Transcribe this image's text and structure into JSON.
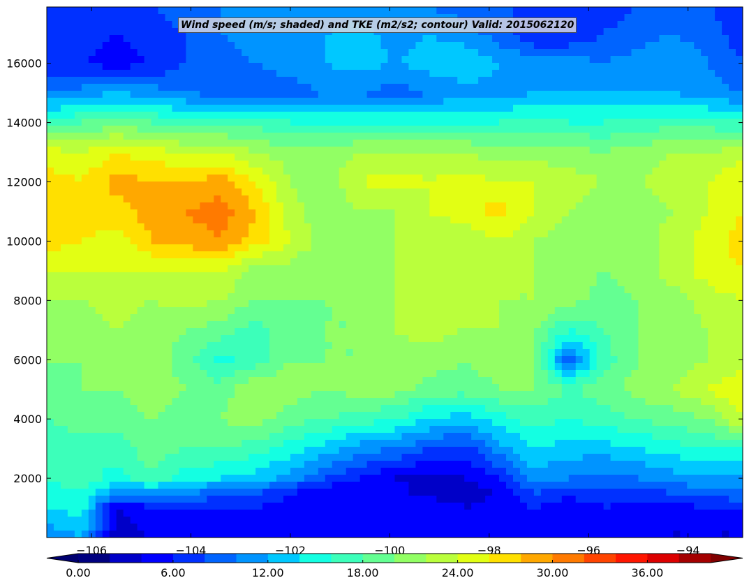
{
  "chart_data": {
    "type": "heatmap",
    "title": "Wind speed (m/s; shaded) and TKE (m2/s2; contour) Valid: 2015062120",
    "xlabel": "",
    "ylabel": "",
    "xlim": [
      -106.9,
      -92.9
    ],
    "ylim": [
      0,
      17900
    ],
    "x_ticks": [
      -106,
      -104,
      -102,
      -100,
      -98,
      -96,
      -94
    ],
    "x_tick_labels": [
      "−106",
      "−104",
      "−102",
      "−100",
      "−98",
      "−96",
      "−94"
    ],
    "y_ticks": [
      2000,
      4000,
      6000,
      8000,
      10000,
      12000,
      14000,
      16000
    ],
    "y_tick_labels": [
      "2000",
      "4000",
      "6000",
      "8000",
      "10000",
      "12000",
      "14000",
      "16000"
    ],
    "grid": false,
    "colorbar": {
      "orientation": "horizontal",
      "location": "bottom",
      "extend": "both",
      "levels": [
        0,
        2,
        4,
        6,
        8,
        10,
        12,
        14,
        16,
        18,
        20,
        22,
        24,
        26,
        28,
        30,
        32,
        34,
        36,
        38,
        40
      ],
      "colors": [
        "#00007f",
        "#0000c8",
        "#0000ff",
        "#0030ff",
        "#0064ff",
        "#0094ff",
        "#00c8ff",
        "#14ffe2",
        "#3cffba",
        "#64ff92",
        "#92ff64",
        "#baff3c",
        "#e2ff14",
        "#ffe000",
        "#ffa800",
        "#ff7a00",
        "#ff4400",
        "#ff1600",
        "#dc0000",
        "#a40000"
      ],
      "under_color": "#000070",
      "over_color": "#800000",
      "tick_values": [
        0,
        6,
        12,
        18,
        24,
        30,
        36
      ],
      "tick_labels": [
        "0.00",
        "6.00",
        "12.00",
        "18.00",
        "24.00",
        "30.00",
        "36.00"
      ]
    },
    "series": [
      {
        "x": [
          -106.9,
          -106.2,
          -105.5,
          -104.8,
          -104.1,
          -103.4,
          -102.7,
          -102.0,
          -101.3,
          -100.6,
          -99.9,
          -99.2,
          -98.5,
          -97.8,
          -97.1,
          -96.4,
          -95.7,
          -95.0,
          -94.3,
          -93.6,
          -92.9
        ],
        "y": [
          0,
          500,
          1000,
          1500,
          2000,
          3000,
          4000,
          5000,
          6000,
          7000,
          8000,
          9000,
          10000,
          11000,
          12000,
          13000,
          14000,
          15000,
          16000,
          17000,
          17900
        ],
        "z": [
          [
            10,
            12,
            3,
            4,
            4,
            4,
            4,
            4,
            4,
            4,
            4,
            4,
            4,
            4,
            4,
            4,
            4,
            4,
            4,
            4,
            4
          ],
          [
            12,
            14,
            3,
            5,
            5,
            5,
            5,
            5,
            4,
            5,
            5,
            5,
            5,
            4,
            5,
            4,
            5,
            5,
            4,
            4,
            4
          ],
          [
            14,
            15,
            4,
            6,
            6,
            6,
            6,
            5,
            5,
            4,
            6,
            6,
            4,
            5,
            6,
            4,
            6,
            5,
            5,
            6,
            7
          ],
          [
            15,
            16,
            11,
            10,
            10,
            9,
            8,
            6,
            4,
            4,
            5,
            3,
            3,
            4,
            8,
            7,
            7,
            7,
            8,
            9,
            9
          ],
          [
            16,
            17,
            15,
            18,
            15,
            14,
            13,
            11,
            8,
            6,
            4,
            3,
            4,
            6,
            11,
            10,
            9,
            10,
            11,
            12,
            11
          ],
          [
            17,
            17,
            17,
            19,
            18,
            18,
            17,
            15,
            13,
            11,
            10,
            8,
            7,
            11,
            14,
            13,
            13,
            14,
            15,
            16,
            16
          ],
          [
            18,
            19,
            19,
            20,
            19,
            20,
            21,
            19,
            18,
            17,
            16,
            14,
            13,
            15,
            17,
            16,
            17,
            18,
            19,
            20,
            24
          ],
          [
            19,
            20,
            20,
            21,
            20,
            19,
            22,
            21,
            20,
            21,
            21,
            19,
            19,
            20,
            20,
            18,
            19,
            21,
            22,
            24,
            26
          ],
          [
            20,
            20,
            21,
            21,
            19,
            15,
            17,
            20,
            20,
            20,
            21,
            21,
            20,
            21,
            21,
            8,
            17,
            20,
            21,
            22,
            23
          ],
          [
            21,
            21,
            22,
            21,
            20,
            19,
            17,
            19,
            20,
            20,
            22,
            23,
            22,
            22,
            20,
            16,
            18,
            20,
            21,
            22,
            23
          ],
          [
            22,
            22,
            23,
            22,
            23,
            22,
            20,
            20,
            20,
            20,
            22,
            24,
            24,
            22,
            22,
            21,
            19,
            20,
            21,
            23,
            24
          ],
          [
            24,
            24,
            24,
            24,
            24,
            24,
            21,
            21,
            20,
            21,
            22,
            23,
            22,
            22,
            22,
            21,
            20,
            21,
            23,
            25,
            26
          ],
          [
            27,
            26,
            25,
            28,
            29,
            30,
            27,
            24,
            21,
            21,
            22,
            23,
            22,
            24,
            22,
            21,
            21,
            21,
            23,
            25,
            27
          ],
          [
            26,
            27,
            27,
            29,
            30,
            31,
            28,
            23,
            20,
            22,
            22,
            24,
            25,
            27,
            24,
            22,
            21,
            21,
            22,
            24,
            26
          ],
          [
            27,
            26,
            29,
            28,
            28,
            29,
            26,
            22,
            21,
            24,
            25,
            24,
            25,
            24,
            24,
            23,
            22,
            22,
            23,
            24,
            26
          ],
          [
            25,
            24,
            26,
            25,
            24,
            24,
            22,
            21,
            21,
            22,
            22,
            22,
            22,
            21,
            21,
            21,
            20,
            21,
            22,
            22,
            23
          ],
          [
            17,
            18,
            19,
            18,
            17,
            17,
            17,
            16,
            16,
            16,
            16,
            16,
            16,
            16,
            17,
            16,
            16,
            17,
            17,
            17,
            16
          ],
          [
            10,
            11,
            12,
            11,
            10,
            9,
            9,
            9,
            10,
            10,
            9,
            10,
            11,
            11,
            12,
            12,
            12,
            12,
            12,
            11,
            10
          ],
          [
            7,
            6,
            5,
            6,
            8,
            9,
            10,
            11,
            12,
            13,
            12,
            13,
            14,
            12,
            11,
            11,
            10,
            11,
            12,
            10,
            8
          ],
          [
            7,
            7,
            6,
            7,
            8,
            10,
            11,
            12,
            12,
            13,
            11,
            12,
            11,
            9,
            6,
            6,
            8,
            9,
            10,
            9,
            7
          ],
          [
            7,
            8,
            7,
            8,
            9,
            10,
            10,
            11,
            10,
            11,
            10,
            10,
            9,
            9,
            7,
            6,
            7,
            8,
            8,
            8,
            7
          ]
        ]
      }
    ]
  }
}
